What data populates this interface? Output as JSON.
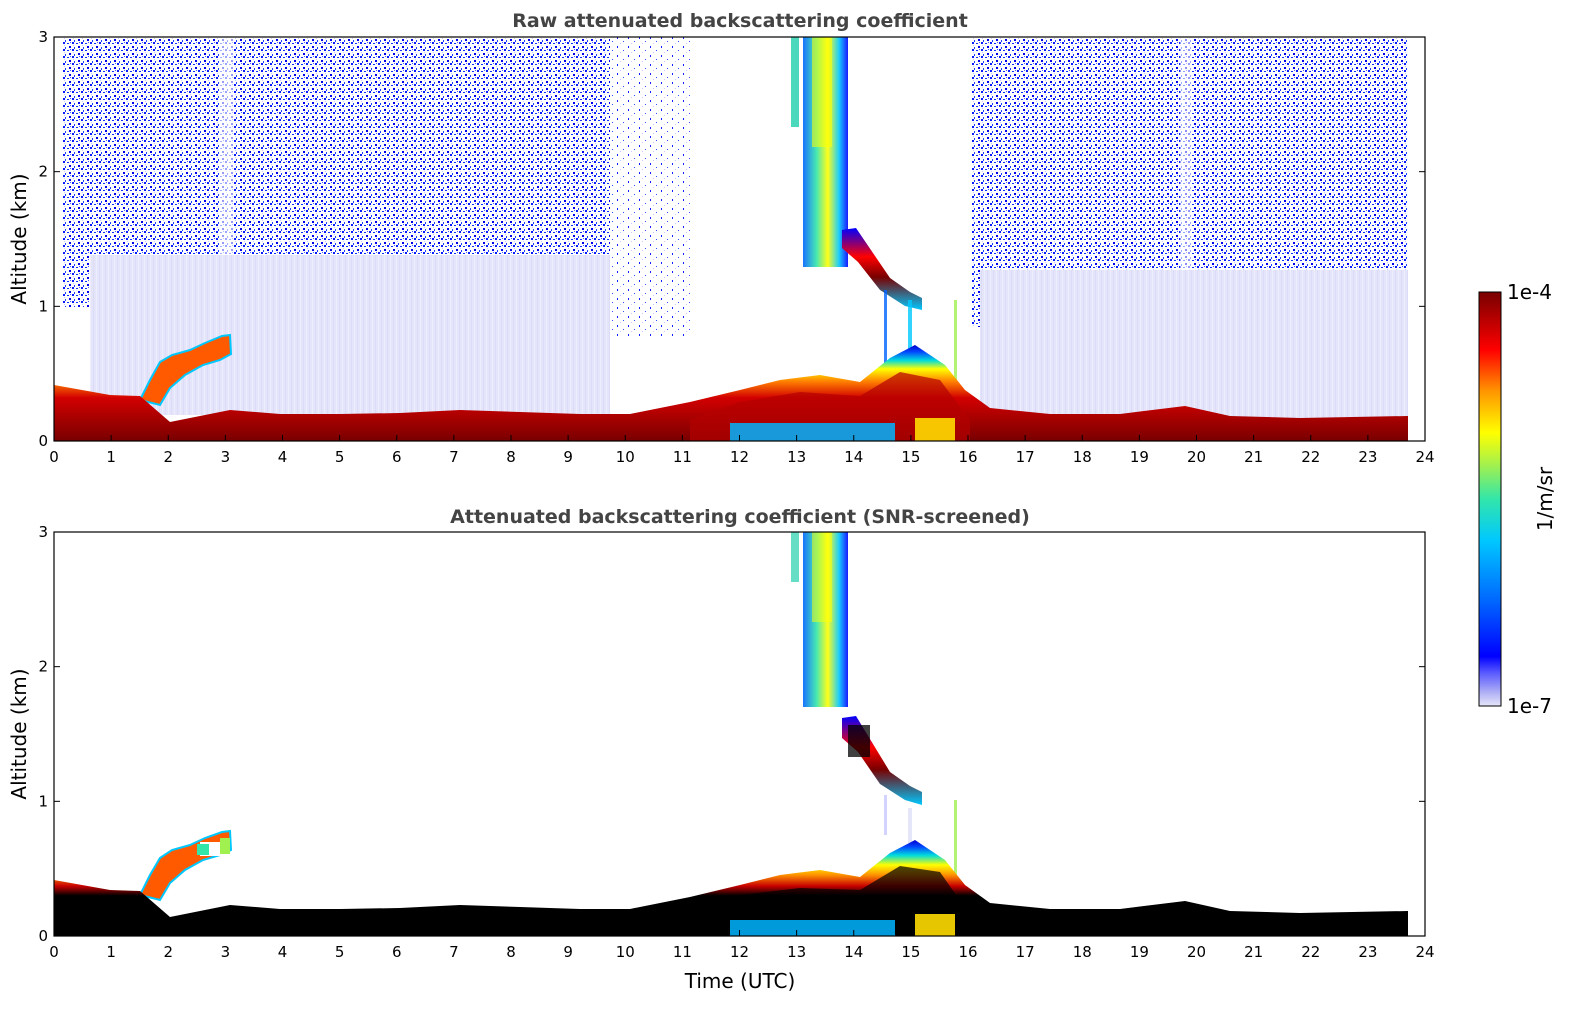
{
  "chart_data": [
    {
      "type": "heatmap",
      "title": "Raw attenuated backscattering coefficient",
      "xlabel": "",
      "ylabel": "Altitude (km)",
      "xlim": [
        0,
        24
      ],
      "ylim": [
        0,
        3
      ],
      "xticks": [
        "0",
        "1",
        "2",
        "3",
        "4",
        "5",
        "6",
        "7",
        "8",
        "9",
        "10",
        "11",
        "12",
        "13",
        "14",
        "15",
        "16",
        "17",
        "18",
        "19",
        "20",
        "21",
        "22",
        "23",
        "24"
      ],
      "yticks": [
        "0",
        "1",
        "2",
        "3"
      ],
      "data_end_hour": 23.7,
      "surface_layer_top_km": [
        {
          "t": 0.0,
          "z": 0.42
        },
        {
          "t": 1.0,
          "z": 0.35
        },
        {
          "t": 1.7,
          "z": 0.3
        },
        {
          "t": 2.0,
          "z": 0.14
        },
        {
          "t": 3.0,
          "z": 0.22
        },
        {
          "t": 4.0,
          "z": 0.2
        },
        {
          "t": 6.0,
          "z": 0.2
        },
        {
          "t": 8.0,
          "z": 0.22
        },
        {
          "t": 10.0,
          "z": 0.2
        },
        {
          "t": 11.5,
          "z": 0.28
        },
        {
          "t": 13.0,
          "z": 0.42
        },
        {
          "t": 14.0,
          "z": 0.4
        },
        {
          "t": 15.0,
          "z": 0.55
        },
        {
          "t": 16.0,
          "z": 0.3
        },
        {
          "t": 17.0,
          "z": 0.22
        },
        {
          "t": 19.0,
          "z": 0.2
        },
        {
          "t": 19.8,
          "z": 0.25
        },
        {
          "t": 21.0,
          "z": 0.17
        },
        {
          "t": 23.7,
          "z": 0.17
        }
      ],
      "elevated_aerosol_layer_km": [
        {
          "t": 1.5,
          "z": 0.35
        },
        {
          "t": 2.0,
          "z": 0.52
        },
        {
          "t": 2.5,
          "z": 0.62
        },
        {
          "t": 3.0,
          "z": 0.7
        }
      ],
      "cloud_layer_km": [
        {
          "t": 13.8,
          "z": 1.5
        },
        {
          "t": 14.3,
          "z": 1.25
        },
        {
          "t": 14.8,
          "z": 1.05
        }
      ],
      "precip_column_hours": [
        12.9,
        13.8
      ],
      "noise_regions_hours": [
        [
          0.4,
          10.6
        ],
        [
          16.1,
          23.7
        ]
      ]
    },
    {
      "type": "heatmap",
      "title": "Attenuated backscattering coefficient (SNR-screened)",
      "xlabel": "Time (UTC)",
      "ylabel": "Altitude (km)",
      "xlim": [
        0,
        24
      ],
      "ylim": [
        0,
        3
      ],
      "xticks": [
        "0",
        "1",
        "2",
        "3",
        "4",
        "5",
        "6",
        "7",
        "8",
        "9",
        "10",
        "11",
        "12",
        "13",
        "14",
        "15",
        "16",
        "17",
        "18",
        "19",
        "20",
        "21",
        "22",
        "23",
        "24"
      ],
      "yticks": [
        "0",
        "1",
        "2",
        "3"
      ],
      "data_end_hour": 23.7,
      "saturated_near_surface": true
    }
  ],
  "colorbar": {
    "label": "1/m/sr",
    "max_label": "1e-4",
    "min_label": "1e-7",
    "scale": "log",
    "colors": [
      "#e6e6fa",
      "#b4b4f5",
      "#7878ff",
      "#0000ff",
      "#0064ff",
      "#00c8ff",
      "#32e6aa",
      "#a0f050",
      "#ffff00",
      "#ff9600",
      "#ff0000",
      "#b40000",
      "#780000"
    ]
  }
}
